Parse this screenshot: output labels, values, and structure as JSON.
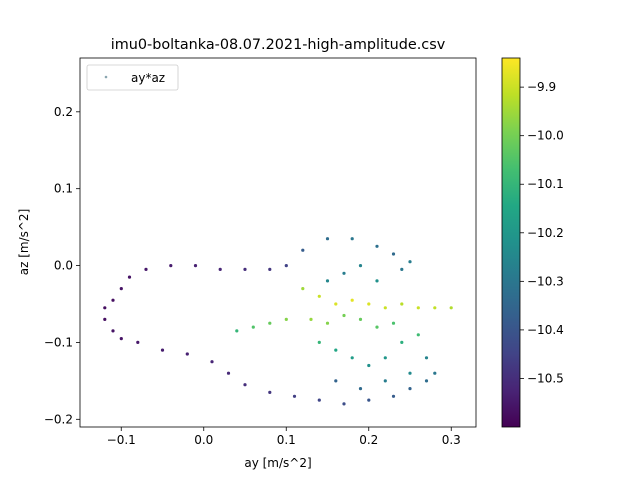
{
  "chart_data": {
    "type": "scatter",
    "title": "imu0-boltanka-08.07.2021-high-amplitude.csv",
    "xlabel": "ay [m/s^2]",
    "ylabel": "az [m/s^2]",
    "xlim": [
      -0.15,
      0.33
    ],
    "ylim": [
      -0.21,
      0.27
    ],
    "xticks": [
      -0.1,
      0.0,
      0.1,
      0.2,
      0.3
    ],
    "xtick_labels": [
      "−0.1",
      "0.0",
      "0.1",
      "0.2",
      "0.3"
    ],
    "yticks": [
      -0.2,
      -0.1,
      0.0,
      0.1,
      0.2
    ],
    "ytick_labels": [
      "−0.2",
      "−0.1",
      "0.0",
      "0.1",
      "0.2"
    ],
    "grid": false,
    "legend": {
      "position": "upper-left",
      "entries": [
        "ay*az"
      ]
    },
    "colorbar": {
      "colormap": "viridis",
      "range": [
        -10.6,
        -9.84
      ],
      "ticks": [
        -9.9,
        -10.0,
        -10.1,
        -10.2,
        -10.3,
        -10.4,
        -10.5
      ],
      "tick_labels": [
        "−9.9",
        "−10.0",
        "−10.1",
        "−10.2",
        "−10.3",
        "−10.4",
        "−10.5"
      ]
    },
    "series": [
      {
        "name": "ay*az",
        "note_points": "dense trajectory; representative sampled points (x=ay, y=az, c=ax)",
        "points": [
          [
            -0.11,
            -0.045,
            -10.57
          ],
          [
            -0.1,
            -0.03,
            -10.56
          ],
          [
            -0.09,
            -0.015,
            -10.56
          ],
          [
            -0.07,
            -0.005,
            -10.55
          ],
          [
            -0.04,
            0.0,
            -10.54
          ],
          [
            -0.01,
            0.0,
            -10.53
          ],
          [
            0.02,
            -0.005,
            -10.52
          ],
          [
            0.05,
            -0.005,
            -10.5
          ],
          [
            0.08,
            -0.005,
            -10.48
          ],
          [
            0.1,
            0.0,
            -10.45
          ],
          [
            0.12,
            0.02,
            -10.38
          ],
          [
            0.15,
            0.035,
            -10.33
          ],
          [
            0.18,
            0.035,
            -10.3
          ],
          [
            0.21,
            0.025,
            -10.32
          ],
          [
            0.23,
            0.015,
            -10.34
          ],
          [
            0.24,
            -0.005,
            -10.3
          ],
          [
            -0.12,
            -0.055,
            -10.57
          ],
          [
            -0.12,
            -0.07,
            -10.57
          ],
          [
            -0.11,
            -0.085,
            -10.56
          ],
          [
            -0.1,
            -0.095,
            -10.56
          ],
          [
            -0.08,
            -0.1,
            -10.55
          ],
          [
            -0.05,
            -0.11,
            -10.54
          ],
          [
            -0.02,
            -0.115,
            -10.53
          ],
          [
            0.01,
            -0.125,
            -10.52
          ],
          [
            0.03,
            -0.14,
            -10.51
          ],
          [
            0.05,
            -0.155,
            -10.5
          ],
          [
            0.08,
            -0.165,
            -10.48
          ],
          [
            0.11,
            -0.17,
            -10.46
          ],
          [
            0.14,
            -0.175,
            -10.44
          ],
          [
            0.17,
            -0.18,
            -10.42
          ],
          [
            0.2,
            -0.175,
            -10.4
          ],
          [
            0.23,
            -0.17,
            -10.38
          ],
          [
            0.25,
            -0.16,
            -10.36
          ],
          [
            0.27,
            -0.15,
            -10.33
          ],
          [
            0.28,
            -0.14,
            -10.3
          ],
          [
            0.27,
            -0.12,
            -10.26
          ],
          [
            0.12,
            -0.03,
            -9.95
          ],
          [
            0.14,
            -0.04,
            -9.9
          ],
          [
            0.16,
            -0.05,
            -9.88
          ],
          [
            0.18,
            -0.045,
            -9.87
          ],
          [
            0.2,
            -0.05,
            -9.88
          ],
          [
            0.22,
            -0.055,
            -9.9
          ],
          [
            0.24,
            -0.05,
            -9.92
          ],
          [
            0.26,
            -0.055,
            -9.9
          ],
          [
            0.28,
            -0.055,
            -9.91
          ],
          [
            0.3,
            -0.055,
            -9.93
          ],
          [
            0.13,
            -0.07,
            -9.96
          ],
          [
            0.15,
            -0.075,
            -9.98
          ],
          [
            0.17,
            -0.065,
            -10.0
          ],
          [
            0.19,
            -0.07,
            -10.02
          ],
          [
            0.21,
            -0.08,
            -10.04
          ],
          [
            0.23,
            -0.075,
            -10.06
          ],
          [
            0.14,
            -0.1,
            -10.1
          ],
          [
            0.16,
            -0.11,
            -10.15
          ],
          [
            0.18,
            -0.12,
            -10.18
          ],
          [
            0.2,
            -0.13,
            -10.22
          ],
          [
            0.22,
            -0.12,
            -10.2
          ],
          [
            0.24,
            -0.1,
            -10.12
          ],
          [
            0.26,
            -0.09,
            -10.08
          ],
          [
            0.15,
            -0.02,
            -10.25
          ],
          [
            0.17,
            -0.01,
            -10.28
          ],
          [
            0.19,
            0.0,
            -10.26
          ],
          [
            0.21,
            -0.02,
            -10.22
          ],
          [
            0.25,
            0.005,
            -10.28
          ],
          [
            0.06,
            -0.08,
            -10.05
          ],
          [
            0.08,
            -0.075,
            -10.02
          ],
          [
            0.1,
            -0.07,
            -9.98
          ],
          [
            0.04,
            -0.085,
            -10.1
          ],
          [
            0.22,
            -0.15,
            -10.28
          ],
          [
            0.25,
            -0.14,
            -10.24
          ],
          [
            0.19,
            -0.16,
            -10.34
          ],
          [
            0.16,
            -0.15,
            -10.36
          ]
        ]
      }
    ]
  }
}
